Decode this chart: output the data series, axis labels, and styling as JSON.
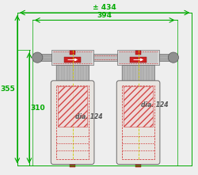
{
  "bg_color": "#eeeeee",
  "dim_color": "#00aa00",
  "red": "#cc2222",
  "dark_gray": "#555555",
  "med_gray": "#aaaaaa",
  "light_gray": "#d8d8d8",
  "bowl_fill": "#e8e4e0",
  "yellow": "#cccc00",
  "white": "#ffffff",
  "label_434": "± 434",
  "label_394": "394",
  "label_355": "355",
  "label_310": "310",
  "label_dia": "dia. 124",
  "fig_w": 2.5,
  "fig_h": 2.21,
  "dpi": 100
}
